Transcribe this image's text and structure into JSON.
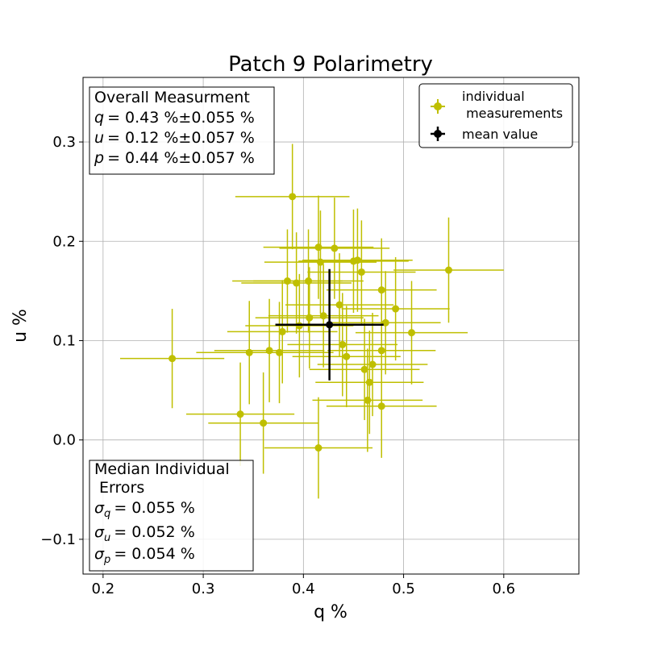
{
  "chart_data": {
    "type": "scatter",
    "title": "Patch 9 Polarimetry",
    "xlabel": "q %",
    "ylabel": "u %",
    "xlim": [
      0.18,
      0.675
    ],
    "ylim": [
      -0.135,
      0.365
    ],
    "xticks": [
      0.2,
      0.3,
      0.4,
      0.5,
      0.6
    ],
    "xtick_labels": [
      "0.2",
      "0.3",
      "0.4",
      "0.5",
      "0.6"
    ],
    "yticks": [
      -0.1,
      0.0,
      0.1,
      0.2,
      0.3
    ],
    "ytick_labels": [
      "−0.1",
      "0.0",
      "0.1",
      "0.2",
      "0.3"
    ],
    "grid": true,
    "legend": {
      "position": "top-right",
      "entries": [
        {
          "label_line1": "individual",
          "label_line2": " measurements",
          "color": "#bfbf00"
        },
        {
          "label_line1": "mean value",
          "label_line2": "",
          "color": "#000000"
        }
      ]
    },
    "series": [
      {
        "name": "individual measurements",
        "color": "#bfbf00",
        "points": [
          {
            "q": 0.269,
            "u": 0.082,
            "xerr": 0.052,
            "yerr": 0.05
          },
          {
            "q": 0.337,
            "u": 0.026,
            "xerr": 0.054,
            "yerr": 0.052
          },
          {
            "q": 0.36,
            "u": 0.017,
            "xerr": 0.055,
            "yerr": 0.051
          },
          {
            "q": 0.346,
            "u": 0.088,
            "xerr": 0.053,
            "yerr": 0.052
          },
          {
            "q": 0.366,
            "u": 0.09,
            "xerr": 0.055,
            "yerr": 0.052
          },
          {
            "q": 0.376,
            "u": 0.088,
            "xerr": 0.054,
            "yerr": 0.051
          },
          {
            "q": 0.379,
            "u": 0.109,
            "xerr": 0.055,
            "yerr": 0.052
          },
          {
            "q": 0.389,
            "u": 0.245,
            "xerr": 0.057,
            "yerr": 0.053
          },
          {
            "q": 0.384,
            "u": 0.16,
            "xerr": 0.055,
            "yerr": 0.052
          },
          {
            "q": 0.393,
            "u": 0.158,
            "xerr": 0.055,
            "yerr": 0.051
          },
          {
            "q": 0.396,
            "u": 0.115,
            "xerr": 0.054,
            "yerr": 0.052
          },
          {
            "q": 0.405,
            "u": 0.16,
            "xerr": 0.055,
            "yerr": 0.052
          },
          {
            "q": 0.406,
            "u": 0.123,
            "xerr": 0.054,
            "yerr": 0.051
          },
          {
            "q": 0.415,
            "u": 0.194,
            "xerr": 0.055,
            "yerr": 0.052
          },
          {
            "q": 0.417,
            "u": 0.179,
            "xerr": 0.056,
            "yerr": 0.052
          },
          {
            "q": 0.42,
            "u": 0.125,
            "xerr": 0.055,
            "yerr": 0.052
          },
          {
            "q": 0.431,
            "u": 0.193,
            "xerr": 0.055,
            "yerr": 0.051
          },
          {
            "q": 0.436,
            "u": 0.136,
            "xerr": 0.054,
            "yerr": 0.052
          },
          {
            "q": 0.439,
            "u": 0.096,
            "xerr": 0.055,
            "yerr": 0.052
          },
          {
            "q": 0.443,
            "u": 0.084,
            "xerr": 0.054,
            "yerr": 0.051
          },
          {
            "q": 0.45,
            "u": 0.18,
            "xerr": 0.055,
            "yerr": 0.052
          },
          {
            "q": 0.454,
            "u": 0.181,
            "xerr": 0.055,
            "yerr": 0.052
          },
          {
            "q": 0.458,
            "u": 0.169,
            "xerr": 0.054,
            "yerr": 0.052
          },
          {
            "q": 0.461,
            "u": 0.071,
            "xerr": 0.055,
            "yerr": 0.051
          },
          {
            "q": 0.464,
            "u": 0.04,
            "xerr": 0.055,
            "yerr": 0.052
          },
          {
            "q": 0.466,
            "u": 0.058,
            "xerr": 0.054,
            "yerr": 0.052
          },
          {
            "q": 0.469,
            "u": 0.076,
            "xerr": 0.055,
            "yerr": 0.052
          },
          {
            "q": 0.478,
            "u": 0.151,
            "xerr": 0.055,
            "yerr": 0.052
          },
          {
            "q": 0.478,
            "u": 0.09,
            "xerr": 0.054,
            "yerr": 0.051
          },
          {
            "q": 0.478,
            "u": 0.034,
            "xerr": 0.055,
            "yerr": 0.052
          },
          {
            "q": 0.482,
            "u": 0.118,
            "xerr": 0.055,
            "yerr": 0.052
          },
          {
            "q": 0.492,
            "u": 0.132,
            "xerr": 0.054,
            "yerr": 0.052
          },
          {
            "q": 0.508,
            "u": 0.108,
            "xerr": 0.056,
            "yerr": 0.052
          },
          {
            "q": 0.545,
            "u": 0.171,
            "xerr": 0.055,
            "yerr": 0.053
          },
          {
            "q": 0.415,
            "u": -0.008,
            "xerr": 0.054,
            "yerr": 0.051
          }
        ]
      },
      {
        "name": "mean value",
        "color": "#000000",
        "points": [
          {
            "q": 0.426,
            "u": 0.116,
            "xerr": 0.054,
            "yerr": 0.056
          }
        ]
      }
    ],
    "annotations": {
      "overall": {
        "title": "Overall Measurment",
        "q_symbol": "q",
        "q_value": "= 0.43 %±0.055 %",
        "u_symbol": "u",
        "u_value": "= 0.12 %±0.057 %",
        "p_symbol": "p",
        "p_value": "= 0.44 %±0.057 %"
      },
      "median_errors": {
        "title_line1": "Median Individual",
        "title_line2": " Errors",
        "sigma_symbol": "σ",
        "q_sub": "q",
        "q_value": "= 0.055 %",
        "u_sub": "u",
        "u_value": "= 0.052 %",
        "p_sub": "p",
        "p_value": "= 0.054 %"
      }
    }
  }
}
